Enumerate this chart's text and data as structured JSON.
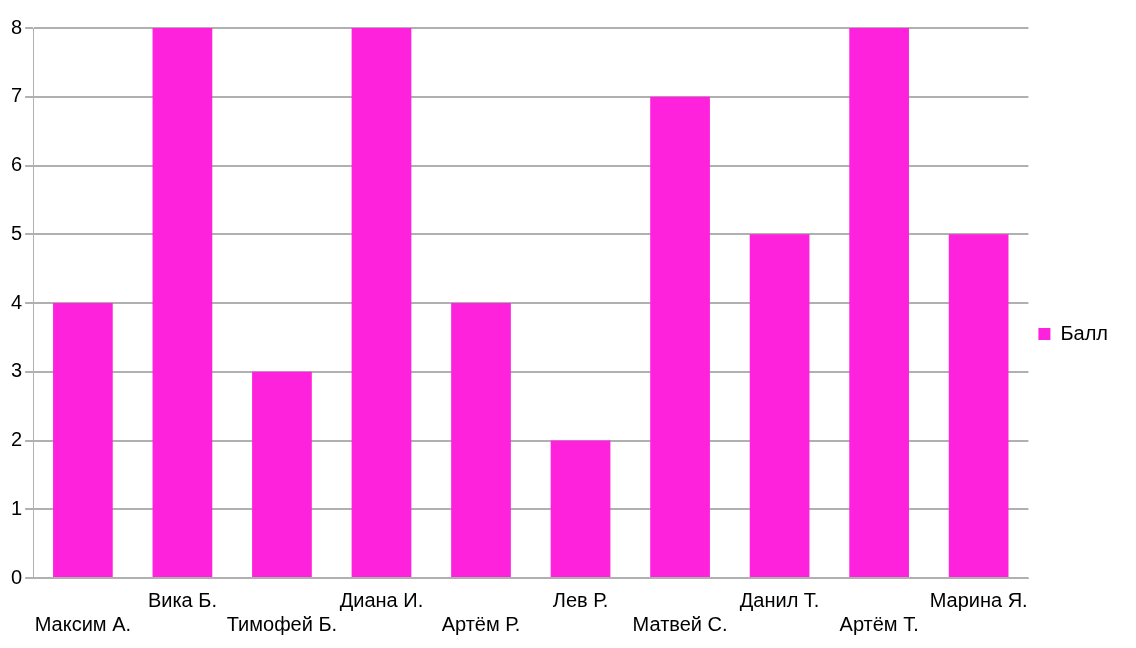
{
  "chart_data": {
    "type": "bar",
    "categories": [
      "Максим А.",
      "Вика Б.",
      "Тимофей Б.",
      "Диана И.",
      "Артём Р.",
      "Лев Р.",
      "Матвей С.",
      "Данил Т.",
      "Артём Т.",
      "Марина Я."
    ],
    "series": [
      {
        "name": "Балл",
        "color": "#ff22dd",
        "values": [
          4,
          8,
          3,
          8,
          4,
          2,
          7,
          5,
          8,
          5
        ]
      }
    ],
    "ylim": [
      0,
      8
    ],
    "yticks": [
      0,
      1,
      2,
      3,
      4,
      5,
      6,
      7,
      8
    ],
    "grid": "y",
    "legend": "right"
  }
}
